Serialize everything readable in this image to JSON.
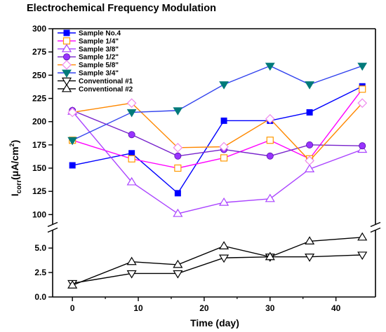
{
  "chart_data": {
    "type": "line",
    "title": "Electrochemical Frequency Modulation",
    "xlabel": "Time (day)",
    "ylabel_main": "I",
    "ylabel_sub": "corr",
    "ylabel_unit": "(μA/cm",
    "ylabel_sup": "2",
    "ylabel_close": ")",
    "xlim": [
      -3,
      46
    ],
    "x_ticks": [
      "0",
      "10",
      "20",
      "30",
      "40"
    ],
    "y_broken": true,
    "y_upper": {
      "range": [
        95,
        300
      ],
      "ticks": [
        "100",
        "125",
        "150",
        "175",
        "200",
        "225",
        "250",
        "275",
        "300"
      ]
    },
    "y_lower": {
      "range": [
        0,
        6.3
      ],
      "ticks": [
        "0.0",
        "2.5",
        "5.0"
      ]
    },
    "legend_position": "top-left",
    "x": [
      0,
      9,
      16,
      23,
      30,
      36,
      44
    ],
    "series": [
      {
        "name": "Sample No.4",
        "segment": "upper",
        "color": "#0000ff",
        "marker": "square-filled",
        "values": [
          153,
          166,
          123,
          201,
          201,
          210,
          238
        ]
      },
      {
        "name": "Sample 1/4\"",
        "segment": "upper",
        "color": "#ff00ff",
        "line_color": "#ff00ff",
        "marker": "square-open",
        "marker_color": "#ff9900",
        "values": [
          180,
          160,
          150,
          161,
          180,
          160,
          235
        ]
      },
      {
        "name": "Sample 3/8\"",
        "segment": "upper",
        "color": "#aa44ff",
        "marker": "triangle-up-open",
        "values": [
          211,
          135,
          101,
          113,
          117,
          149,
          170
        ]
      },
      {
        "name": "Sample 1/2\"",
        "segment": "upper",
        "color": "#7722cc",
        "line_color": "#7722cc",
        "marker": "circle-filled",
        "marker_color": "#9933ff",
        "values": [
          212,
          186,
          163,
          170,
          163,
          175,
          174
        ]
      },
      {
        "name": "Sample 5/8\"",
        "segment": "upper",
        "color": "#ff8800",
        "line_color": "#ff8800",
        "marker": "diamond-open",
        "marker_color": "#ee88ee",
        "values": [
          210,
          220,
          172,
          173,
          203,
          158,
          220
        ]
      },
      {
        "name": "Sample 3/4\"",
        "segment": "upper",
        "color": "#007a7a",
        "line_color": "#3344ee",
        "marker": "triangle-down-filled",
        "values": [
          180,
          210,
          212,
          240,
          260,
          240,
          260
        ]
      },
      {
        "name": "Conventional #1",
        "segment": "lower",
        "color": "#000000",
        "marker": "triangle-down-open",
        "values": [
          1.4,
          2.4,
          2.4,
          4.0,
          4.1,
          4.1,
          4.3
        ]
      },
      {
        "name": "Conventional #2",
        "segment": "lower",
        "color": "#000000",
        "marker": "triangle-up-open",
        "values": [
          1.2,
          3.6,
          3.3,
          5.2,
          4.1,
          5.7,
          6.1
        ]
      }
    ]
  }
}
